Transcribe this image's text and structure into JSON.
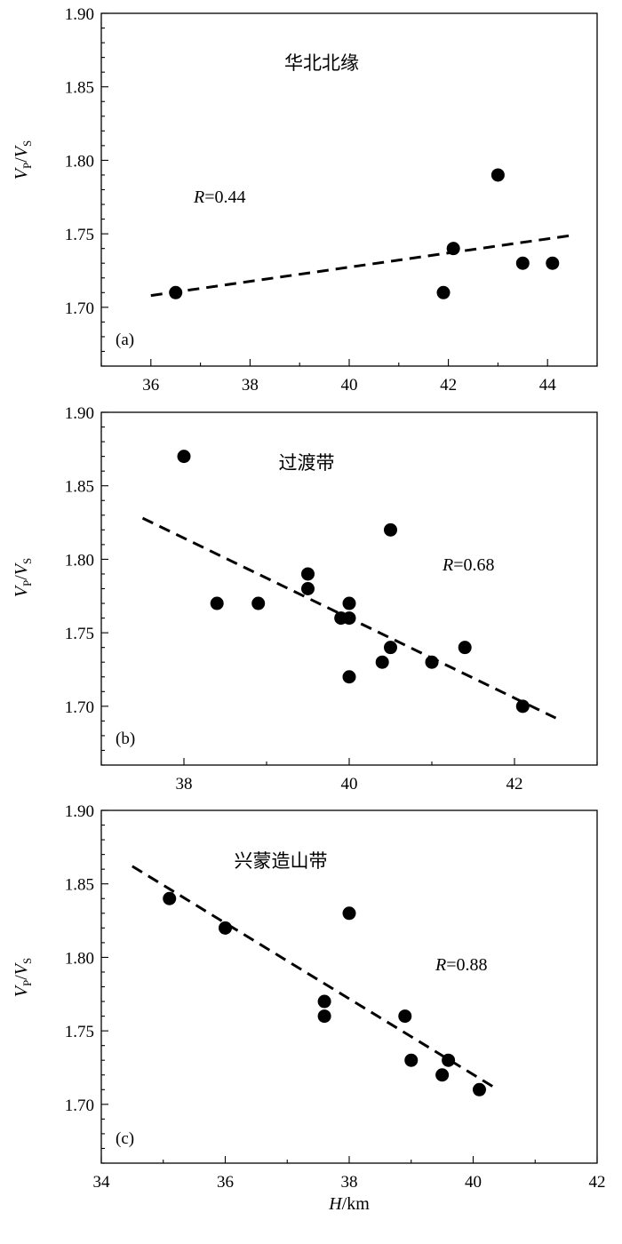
{
  "chart_data": [
    {
      "type": "scatter",
      "panel_label": "(a)",
      "region_title": "华北北缘",
      "r_symbol": "R",
      "r_value": "=0.44",
      "ylabel": {
        "v": "V",
        "p": "P",
        "slash": "/",
        "s": "S"
      },
      "xlabel": {
        "h": "",
        "unit": ""
      },
      "xlim": [
        35,
        45
      ],
      "ylim": [
        1.66,
        1.9
      ],
      "x_ticks": [
        36,
        38,
        40,
        42,
        44
      ],
      "y_ticks": [
        "1.70",
        "1.75",
        "1.80",
        "1.85",
        "1.90"
      ],
      "points": [
        {
          "x": 36.5,
          "y": 1.71
        },
        {
          "x": 41.9,
          "y": 1.71
        },
        {
          "x": 42.1,
          "y": 1.74
        },
        {
          "x": 43.0,
          "y": 1.79
        },
        {
          "x": 43.5,
          "y": 1.73
        },
        {
          "x": 44.1,
          "y": 1.73
        }
      ],
      "fit_line": [
        {
          "x": 36.0,
          "y": 1.708
        },
        {
          "x": 44.5,
          "y": 1.749
        }
      ]
    },
    {
      "type": "scatter",
      "panel_label": "(b)",
      "region_title": "过渡带",
      "r_symbol": "R",
      "r_value": "=0.68",
      "ylabel": {
        "v": "V",
        "p": "P",
        "slash": "/",
        "s": "S"
      },
      "xlabel": {
        "h": "",
        "unit": ""
      },
      "xlim": [
        37,
        43
      ],
      "ylim": [
        1.66,
        1.9
      ],
      "x_ticks": [
        38,
        40,
        42
      ],
      "y_ticks": [
        "1.70",
        "1.75",
        "1.80",
        "1.85",
        "1.90"
      ],
      "points": [
        {
          "x": 38.0,
          "y": 1.87
        },
        {
          "x": 38.4,
          "y": 1.77
        },
        {
          "x": 38.9,
          "y": 1.77
        },
        {
          "x": 39.5,
          "y": 1.79
        },
        {
          "x": 39.5,
          "y": 1.78
        },
        {
          "x": 39.9,
          "y": 1.76
        },
        {
          "x": 40.0,
          "y": 1.77
        },
        {
          "x": 40.0,
          "y": 1.76
        },
        {
          "x": 40.0,
          "y": 1.72
        },
        {
          "x": 40.4,
          "y": 1.73
        },
        {
          "x": 40.5,
          "y": 1.74
        },
        {
          "x": 40.5,
          "y": 1.82
        },
        {
          "x": 41.0,
          "y": 1.73
        },
        {
          "x": 41.4,
          "y": 1.74
        },
        {
          "x": 42.1,
          "y": 1.7
        }
      ],
      "fit_line": [
        {
          "x": 37.5,
          "y": 1.828
        },
        {
          "x": 42.5,
          "y": 1.692
        }
      ]
    },
    {
      "type": "scatter",
      "panel_label": "(c)",
      "region_title": "兴蒙造山带",
      "r_symbol": "R",
      "r_value": "=0.88",
      "ylabel": {
        "v": "V",
        "p": "P",
        "slash": "/",
        "s": "S"
      },
      "xlabel": {
        "h": "H",
        "unit": "/km"
      },
      "xlim": [
        34,
        42
      ],
      "ylim": [
        1.66,
        1.9
      ],
      "x_ticks": [
        34,
        36,
        38,
        40,
        42
      ],
      "y_ticks": [
        "1.70",
        "1.75",
        "1.80",
        "1.85",
        "1.90"
      ],
      "points": [
        {
          "x": 35.1,
          "y": 1.84
        },
        {
          "x": 36.0,
          "y": 1.82
        },
        {
          "x": 37.6,
          "y": 1.77
        },
        {
          "x": 37.6,
          "y": 1.76
        },
        {
          "x": 38.0,
          "y": 1.83
        },
        {
          "x": 38.9,
          "y": 1.76
        },
        {
          "x": 39.0,
          "y": 1.73
        },
        {
          "x": 39.5,
          "y": 1.72
        },
        {
          "x": 39.6,
          "y": 1.73
        },
        {
          "x": 40.1,
          "y": 1.71
        }
      ],
      "fit_line": [
        {
          "x": 34.5,
          "y": 1.862
        },
        {
          "x": 40.4,
          "y": 1.71
        }
      ]
    }
  ]
}
